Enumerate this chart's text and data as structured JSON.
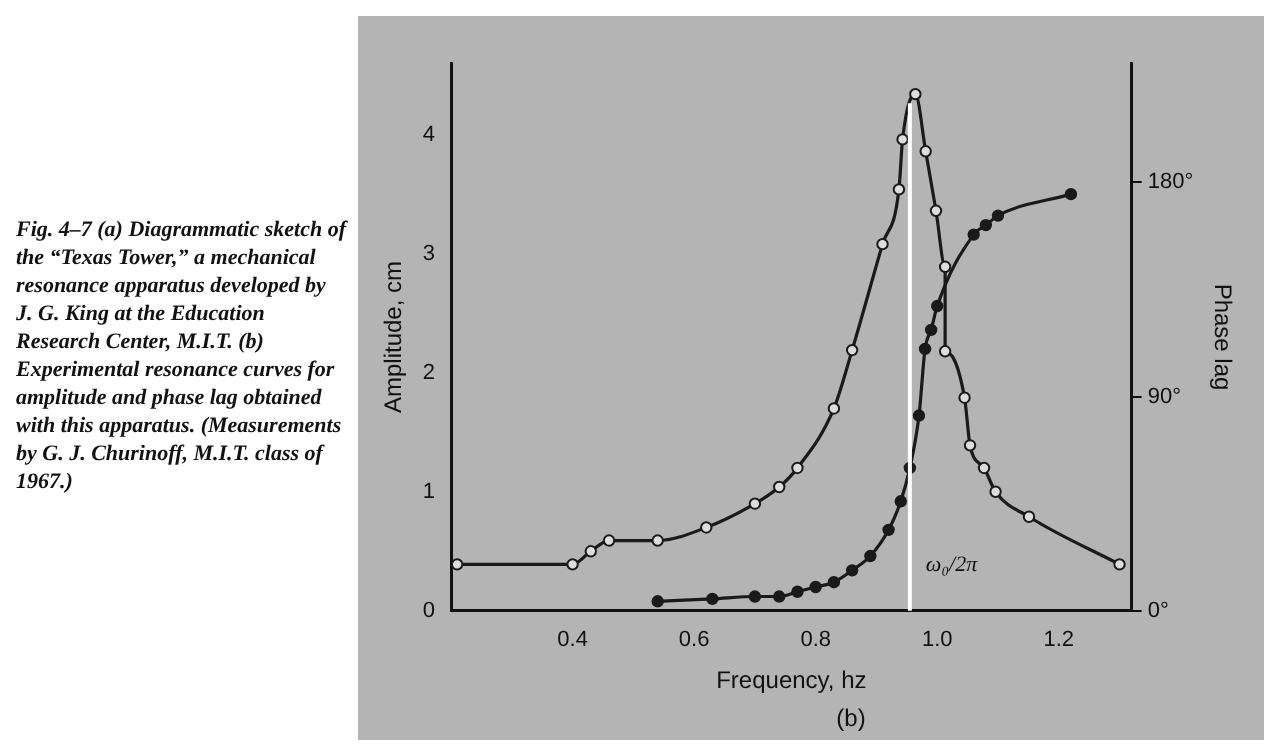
{
  "chart_data": {
    "type": "line",
    "xlabel": "Frequency, hz",
    "ylabel": "Amplitude, cm",
    "y2label": "Phase lag",
    "annotations": [
      "Fig. 4–7 (a) Diagrammatic sketch of the “Texas Tower,” a mechanical resonance apparatus developed by J. G. King at the Education Research Center, M.I.T. (b) Experimental resonance curves for amplitude and phase lag obtained with this apparatus. (Measurements by G. J. Churinoff, M.I.T. class of 1967.)",
      "(b)"
    ],
    "series": [
      {
        "color": "#1a1a1a",
        "x": [
          0.21,
          0.4,
          0.43,
          0.46,
          0.54,
          0.62,
          0.7,
          0.74,
          0.77,
          0.83,
          0.86,
          0.91,
          0.937,
          0.943,
          0.964,
          0.981,
          0.998,
          1.013,
          1.013,
          1.045,
          1.054,
          1.077,
          1.096,
          1.151,
          1.3
        ],
        "values": [
          0.39,
          0.39,
          0.5,
          0.59,
          0.59,
          0.7,
          0.9,
          1.04,
          1.2,
          1.7,
          2.19,
          3.08,
          3.54,
          3.96,
          4.34,
          3.86,
          3.36,
          2.89,
          2.18,
          1.79,
          1.39,
          1.2,
          1.0,
          0.79,
          0.39
        ]
      },
      {
        "color": "#1a1a1a",
        "axis": "y2",
        "x": [
          0.54,
          0.63,
          0.7,
          0.74,
          0.77,
          0.8,
          0.83,
          0.86,
          0.89,
          0.92,
          0.94,
          0.955,
          0.97,
          0.98,
          0.99,
          1.0,
          1.06,
          1.08,
          1.1,
          1.22
        ],
        "values": [
          4,
          5,
          6,
          6,
          8,
          10,
          12,
          17,
          23,
          34,
          46,
          60,
          82,
          110,
          118,
          128,
          158,
          162,
          166,
          175
        ]
      }
    ],
    "xlim": [
      0.2,
      1.32
    ],
    "xticks": [
      0.4,
      0.6,
      0.8,
      {
        "value": 1,
        "label": "1.0"
      },
      1.2
    ],
    "ylim": [
      0,
      4.6
    ],
    "yticks": [
      0,
      1,
      2,
      3,
      4
    ],
    "y2lim": [
      0,
      230
    ],
    "y2ticks": [
      {
        "value": 0,
        "label": "0°"
      },
      {
        "value": 90,
        "label": "90°"
      },
      {
        "value": 180,
        "label": "180°"
      }
    ],
    "ref_lines": [
      {
        "axis": "x",
        "value": 0.955,
        "label": "ω₀/2π",
        "color": "#ffffff"
      }
    ],
    "marker": "circle",
    "grid": false,
    "legend": false
  }
}
